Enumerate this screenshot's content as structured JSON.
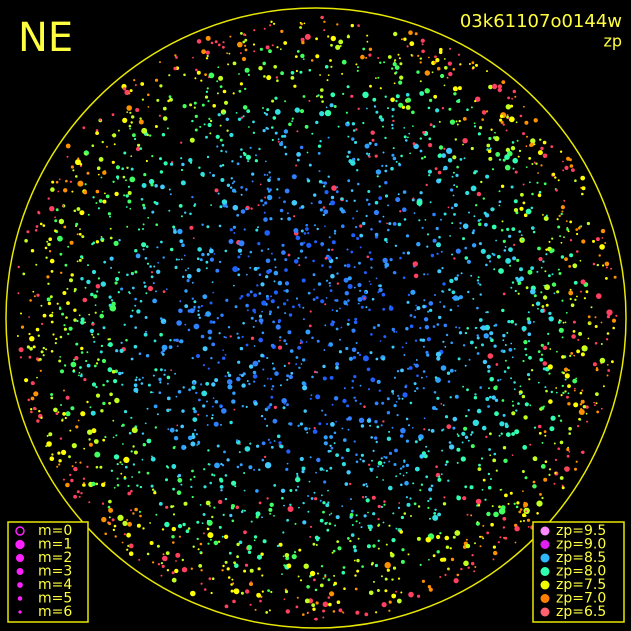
{
  "corner_label": "NE",
  "frame_id": "03k61107o0144w",
  "subtitle": "zp",
  "magnitude_legend": [
    "m=0",
    "m=1",
    "m=2",
    "m=3",
    "m=4",
    "m=5",
    "m=6"
  ],
  "zp_legend": [
    {
      "label": "zp=9.5",
      "color": "#ff88ff"
    },
    {
      "label": "zp=9.0",
      "color": "#e020f0"
    },
    {
      "label": "zp=8.5",
      "color": "#30b8ff"
    },
    {
      "label": "zp=8.0",
      "color": "#30ffb0"
    },
    {
      "label": "zp=7.5",
      "color": "#f0ff00"
    },
    {
      "label": "zp=7.0",
      "color": "#ff8000"
    },
    {
      "label": "zp=6.5",
      "color": "#ff6070"
    }
  ]
}
